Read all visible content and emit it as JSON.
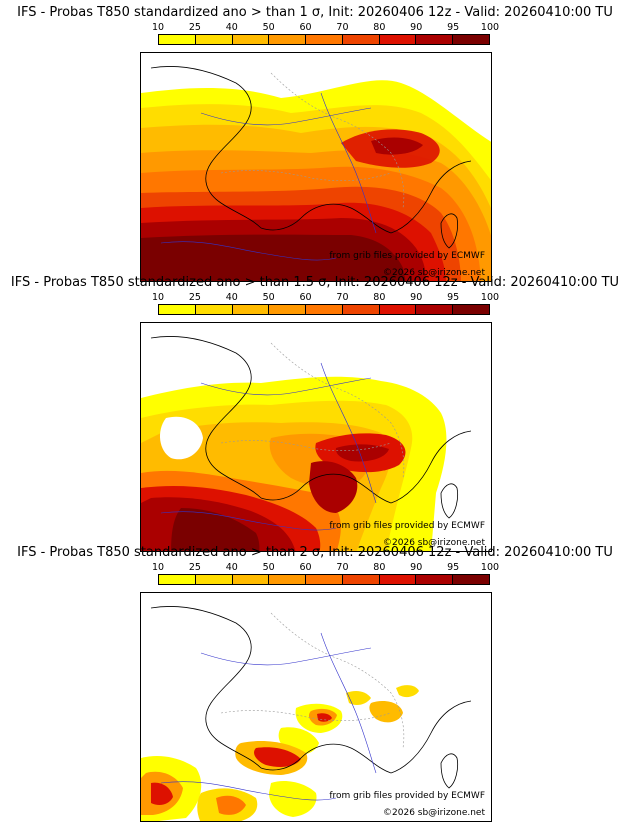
{
  "colorbar": {
    "levels": [
      "10",
      "25",
      "40",
      "50",
      "60",
      "70",
      "80",
      "90",
      "95",
      "100"
    ],
    "colors": [
      "#ffff00",
      "#ffdd00",
      "#ffbb00",
      "#ff9900",
      "#ff7700",
      "#ee4400",
      "#dd1100",
      "#aa0000",
      "#7a0000"
    ]
  },
  "panels": [
    {
      "title": "IFS - Probas T850  standardized ano > than 1 σ, Init: 20260406 12z - Valid: 20260410:00 TU",
      "credit": "from grib files provided by ECMWF",
      "copyright": "©2026 sb@irizone.net"
    },
    {
      "title": "IFS - Probas T850  standardized ano > than 1.5 σ, Init: 20260406 12z - Valid: 20260410:00 TU",
      "credit": "from grib files provided by ECMWF",
      "copyright": "©2026 sb@irizone.net"
    },
    {
      "title": "IFS - Probas T850  standardized ano > than 2 σ, Init: 20260406 12z - Valid: 20260410:00 TU",
      "credit": "from grib files provided by ECMWF",
      "copyright": "©2026 sb@irizone.net"
    }
  ],
  "icons": {
    "map-base": "map-basemap-icon"
  }
}
